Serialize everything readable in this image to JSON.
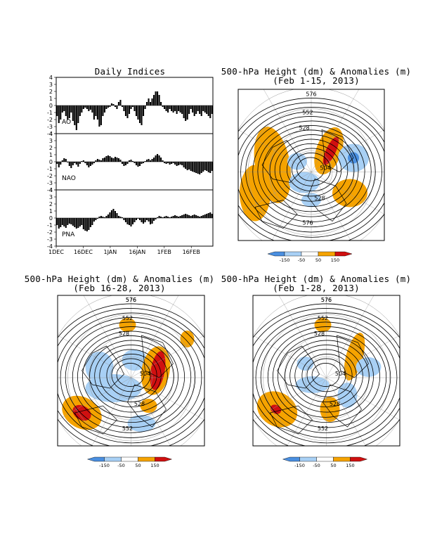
{
  "chart_data": [
    {
      "type": "bar",
      "title": "Daily Indices",
      "x_ticks": [
        "1DEC",
        "16DEC",
        "1JAN",
        "16JAN",
        "1FEB",
        "16FEB"
      ],
      "ylim": [
        -4,
        4
      ],
      "yticks": [
        "4",
        "3",
        "2",
        "1",
        "0",
        "-1",
        "-2",
        "-3",
        "-4"
      ],
      "series": [
        {
          "name": "AO",
          "values": [
            -1.5,
            -2.5,
            -2,
            -1,
            -0.8,
            -1.5,
            -2,
            -1.8,
            -1,
            -2.2,
            -2.8,
            -3.5,
            -2.5,
            -1.5,
            -1,
            -0.5,
            -0.3,
            -0.5,
            -0.8,
            -0.6,
            -1,
            -2,
            -1.5,
            -2,
            -3,
            -2.8,
            -1.5,
            -1,
            -0.5,
            -0.3,
            -0.2,
            0.3,
            0.2,
            -0.2,
            -0.5,
            0.5,
            0.8,
            -0.2,
            -0.8,
            -1.5,
            -1.8,
            -1.2,
            -0.5,
            -0.2,
            -0.8,
            -1.5,
            -2,
            -2.5,
            -2.8,
            -1.5,
            -0.5,
            0.5,
            1,
            0.5,
            1,
            1.5,
            2,
            2,
            1.5,
            0.5,
            -0.2,
            -0.5,
            -0.8,
            -1,
            -0.5,
            -0.8,
            -1,
            -0.8,
            -1.2,
            -0.8,
            -1,
            -1.2,
            -1.8,
            -2.2,
            -2,
            -1.2,
            -0.5,
            -1,
            -1.5,
            -1.2,
            -0.8,
            -1.2,
            -1.5,
            -0.8,
            -1,
            -1.2,
            -1.5,
            -1.8,
            -1.2
          ]
        },
        {
          "name": "NAO",
          "values": [
            -0.3,
            -0.8,
            -0.4,
            0.2,
            0.5,
            0.4,
            -0.1,
            -0.6,
            -0.9,
            -0.5,
            -0.2,
            -0.4,
            -0.7,
            -0.3,
            0.1,
            0.2,
            -0.2,
            -0.5,
            -0.8,
            -0.6,
            -0.4,
            -0.2,
            0.2,
            0.4,
            0.3,
            0.2,
            0.5,
            0.6,
            0.8,
            0.9,
            0.8,
            0.6,
            0.5,
            0.7,
            0.6,
            0.5,
            0.3,
            -0.3,
            -0.6,
            -0.5,
            -0.3,
            0.2,
            0.3,
            0.1,
            -0.2,
            -0.5,
            -0.7,
            -0.6,
            -0.3,
            -0.2,
            0.1,
            0.3,
            0.4,
            0.2,
            0.4,
            0.6,
            0.9,
            1.1,
            0.9,
            0.6,
            0.2,
            -0.2,
            -0.3,
            -0.2,
            -0.4,
            -0.3,
            -0.2,
            -0.4,
            -0.6,
            -0.5,
            -0.4,
            -0.5,
            -0.8,
            -1,
            -1.2,
            -1.1,
            -1.3,
            -1.4,
            -1.5,
            -1.6,
            -1.7,
            -1.8,
            -1.6,
            -1.4,
            -1.2,
            -1.3,
            -1.5,
            -1.6,
            -1.3
          ]
        },
        {
          "name": "PNA",
          "values": [
            -1,
            -1.5,
            -1.3,
            -1,
            -1.2,
            -1.4,
            -1,
            -0.8,
            -0.9,
            -1.1,
            -1.3,
            -1.5,
            -1.4,
            -1.2,
            -1,
            -1.6,
            -1.8,
            -1.9,
            -1.7,
            -1.3,
            -1,
            -0.5,
            -0.3,
            -0.1,
            0.2,
            0.3,
            0.2,
            0.1,
            0.3,
            0.5,
            0.8,
            1.1,
            1.3,
            1,
            0.7,
            0.3,
            0.2,
            0.1,
            -0.3,
            -0.6,
            -0.9,
            -1,
            -1.2,
            -0.9,
            -0.6,
            -0.3,
            -0.1,
            -0.3,
            -0.6,
            -0.8,
            -0.6,
            -0.3,
            -0.5,
            -0.9,
            -0.8,
            -0.4,
            -0.2,
            0.1,
            0.3,
            0.2,
            0.1,
            0.2,
            0.3,
            0.2,
            0.1,
            0.2,
            0.3,
            0.4,
            0.3,
            0.2,
            0.3,
            0.4,
            0.5,
            0.6,
            0.5,
            0.4,
            0.3,
            0.4,
            0.5,
            0.4,
            0.3,
            0.2,
            0.3,
            0.4,
            0.5,
            0.6,
            0.7,
            0.8,
            0.6
          ]
        }
      ]
    },
    {
      "type": "heatmap",
      "title": "500-hPa Height (dm) & Anomalies (m)",
      "subtitle": "(Feb 1-15, 2013)",
      "contour_labels": [
        "576",
        "552",
        "528",
        "504",
        "528",
        "576"
      ],
      "legend": [
        -150,
        -50,
        50,
        150
      ]
    },
    {
      "type": "heatmap",
      "title": "500-hPa Height (dm) & Anomalies (m)",
      "subtitle": "(Feb 16-28, 2013)",
      "contour_labels": [
        "576",
        "552",
        "528",
        "504",
        "528",
        "552",
        "576"
      ],
      "legend": [
        -150,
        -50,
        50,
        150
      ]
    },
    {
      "type": "heatmap",
      "title": "500-hPa Height (dm) & Anomalies (m)",
      "subtitle": "(Feb 1-28, 2013)",
      "contour_labels": [
        "576",
        "552",
        "528",
        "504",
        "528",
        "552",
        "576"
      ],
      "legend": [
        -150,
        -50,
        50,
        150
      ]
    }
  ],
  "colors": {
    "neg_strong": "#4a8fe0",
    "neg": "#a8d0f5",
    "pos": "#f5a300",
    "pos_strong": "#d01010",
    "bar": "#000000"
  }
}
